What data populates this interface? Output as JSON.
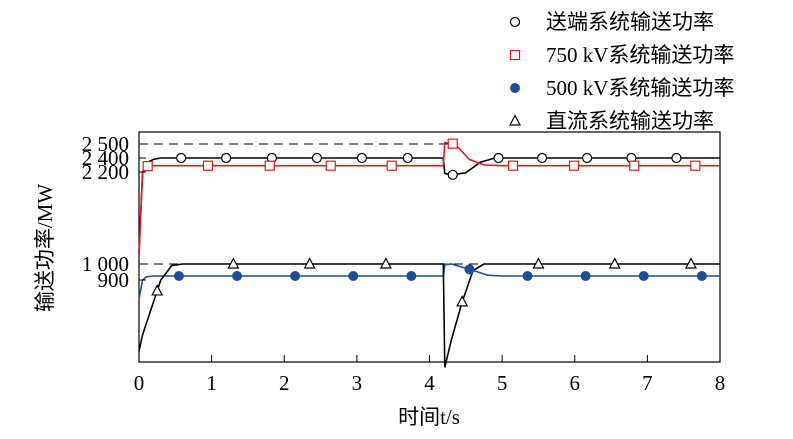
{
  "chart_data": {
    "type": "line",
    "xlabel": "时间t/s",
    "ylabel": "输送功率/MW",
    "xlim": [
      0,
      8
    ],
    "x_ticks": [
      "0",
      "1",
      "2",
      "3",
      "4",
      "5",
      "6",
      "7",
      "8"
    ],
    "y_ticks": [
      {
        "value": 2500,
        "label": "2 500"
      },
      {
        "value": 2400,
        "label": "2 400"
      },
      {
        "value": 2200,
        "label": "2 200"
      },
      {
        "value": 1000,
        "label": "1 000"
      },
      {
        "value": 900,
        "label": "900"
      }
    ],
    "grid": false,
    "legend_position": "top-right",
    "reference_lines": [
      {
        "y": 2500,
        "x_range": [
          0,
          4.35
        ],
        "style": "dashed"
      },
      {
        "y": 1000,
        "x_range": [
          0,
          8
        ],
        "style": "dashed"
      }
    ],
    "series": [
      {
        "name": "送端系统输送功率",
        "marker": "circle-open",
        "color": "#000000",
        "x": [
          0,
          0.05,
          0.12,
          0.2,
          0.3,
          0.45,
          0.6,
          1.0,
          2.0,
          3.0,
          4.0,
          4.19,
          4.21,
          4.3,
          4.5,
          4.7,
          4.9,
          5.5,
          6.5,
          7.5,
          8.0
        ],
        "y": [
          1150,
          2200,
          2340,
          2380,
          2400,
          2400,
          2400,
          2400,
          2400,
          2400,
          2400,
          2400,
          2180,
          2160,
          2190,
          2340,
          2400,
          2400,
          2400,
          2400,
          2400
        ],
        "markers_x": [
          0.58,
          1.2,
          1.83,
          2.45,
          3.07,
          3.7,
          4.32,
          4.95,
          5.55,
          6.17,
          6.78,
          7.4
        ]
      },
      {
        "name": "750 kV系统输送功率",
        "marker": "square-open",
        "color": "#e31a1c",
        "x": [
          0,
          0.05,
          0.1,
          0.15,
          0.25,
          0.5,
          1.0,
          2.0,
          3.0,
          4.0,
          4.19,
          4.21,
          4.35,
          4.55,
          4.75,
          5.0,
          6.0,
          7.0,
          8.0
        ],
        "y": [
          1100,
          2200,
          2280,
          2290,
          2290,
          2290,
          2290,
          2290,
          2290,
          2290,
          2290,
          2510,
          2500,
          2380,
          2300,
          2290,
          2290,
          2290,
          2290
        ],
        "markers_x": [
          0.12,
          0.95,
          1.8,
          2.64,
          3.48,
          4.32,
          5.15,
          5.99,
          6.82,
          7.66
        ]
      },
      {
        "name": "500 kV系统输送功率",
        "marker": "circle-filled",
        "color": "#1f4e96",
        "x": [
          0,
          0.05,
          0.1,
          0.2,
          0.4,
          1.0,
          2.0,
          3.0,
          4.0,
          4.19,
          4.21,
          4.3,
          4.6,
          4.8,
          5.0,
          6.0,
          7.0,
          8.0
        ],
        "y": [
          830,
          900,
          920,
          925,
          925,
          925,
          925,
          925,
          925,
          925,
          995,
          1000,
          960,
          930,
          925,
          925,
          925,
          925
        ],
        "markers_x": [
          0.55,
          1.35,
          2.15,
          2.95,
          3.75,
          4.55,
          5.35,
          6.15,
          6.95,
          7.75
        ]
      },
      {
        "name": "直流系统输送功率",
        "marker": "triangle-open",
        "color": "#000000",
        "x": [
          0,
          0.05,
          0.15,
          0.3,
          0.45,
          0.6,
          1.0,
          2.0,
          3.0,
          4.0,
          4.19,
          4.21,
          4.3,
          4.45,
          4.6,
          4.75,
          5.0,
          6.0,
          7.0,
          8.0
        ],
        "y": [
          640,
          700,
          780,
          900,
          990,
          1000,
          1000,
          1000,
          1000,
          1000,
          1000,
          580,
          680,
          820,
          960,
          1000,
          1000,
          1000,
          1000,
          1000
        ],
        "markers_x": [
          0.25,
          1.3,
          2.35,
          3.4,
          4.45,
          5.5,
          6.55,
          7.6
        ]
      }
    ]
  }
}
